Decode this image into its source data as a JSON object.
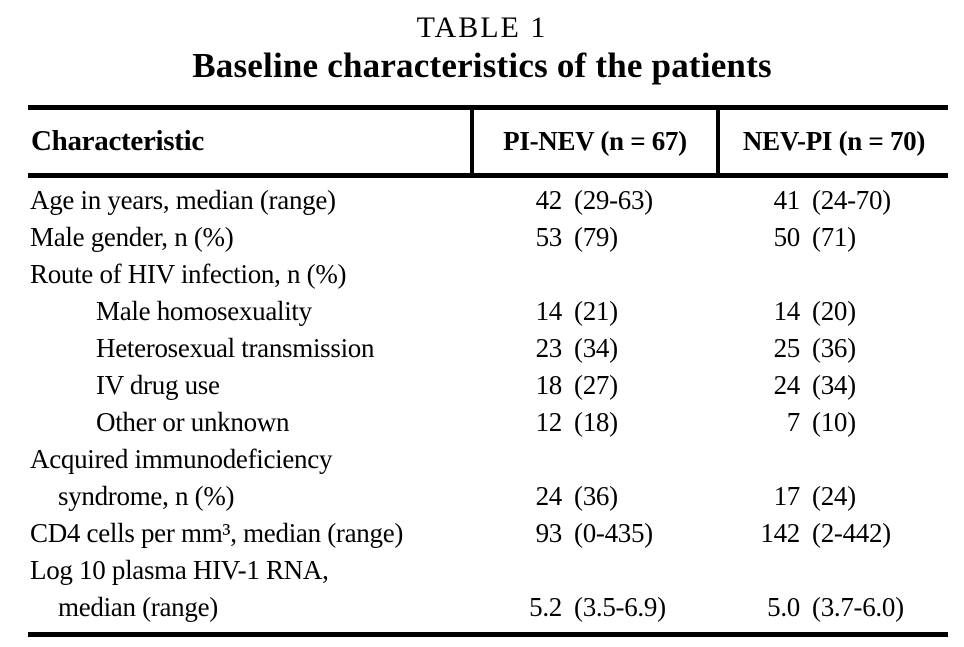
{
  "page": {
    "background": "#ffffff",
    "text_color": "#000000",
    "rule_color": "#000000"
  },
  "table": {
    "title": "TABLE 1",
    "subtitle": "Baseline characteristics of the patients",
    "columns": [
      "Characteristic",
      "PI-NEV (n = 67)",
      "NEV-PI (n = 70)"
    ],
    "rows": [
      {
        "label": "Age in years, median (range)",
        "indent": 0,
        "pi_nev": {
          "num": "42",
          "range": "(29-63)"
        },
        "nev_pi": {
          "num": "41",
          "range": "(24-70)"
        }
      },
      {
        "label": "Male gender, n (%)",
        "indent": 0,
        "pi_nev": {
          "num": "53",
          "range": "(79)"
        },
        "nev_pi": {
          "num": "50",
          "range": "(71)"
        }
      },
      {
        "label": "Route of HIV infection, n (%)",
        "indent": 0,
        "pi_nev": null,
        "nev_pi": null
      },
      {
        "label": "Male homosexuality",
        "indent": 2,
        "pi_nev": {
          "num": "14",
          "range": "(21)"
        },
        "nev_pi": {
          "num": "14",
          "range": "(20)"
        }
      },
      {
        "label": "Heterosexual transmission",
        "indent": 2,
        "pi_nev": {
          "num": "23",
          "range": "(34)"
        },
        "nev_pi": {
          "num": "25",
          "range": "(36)"
        }
      },
      {
        "label": "IV drug use",
        "indent": 2,
        "pi_nev": {
          "num": "18",
          "range": "(27)"
        },
        "nev_pi": {
          "num": "24",
          "range": "(34)"
        }
      },
      {
        "label": "Other or unknown",
        "indent": 2,
        "pi_nev": {
          "num": "12",
          "range": "(18)"
        },
        "nev_pi": {
          "num": "7",
          "range": "(10)"
        }
      },
      {
        "label": "Acquired immunodeficiency",
        "indent": 0,
        "pi_nev": null,
        "nev_pi": null
      },
      {
        "label": "syndrome, n (%)",
        "indent": 1,
        "pi_nev": {
          "num": "24",
          "range": "(36)"
        },
        "nev_pi": {
          "num": "17",
          "range": "(24)"
        }
      },
      {
        "label": "CD4 cells per mm³, median (range)",
        "indent": 0,
        "pi_nev": {
          "num": "93",
          "range": "(0-435)"
        },
        "nev_pi": {
          "num": "142",
          "range": "(2-442)"
        }
      },
      {
        "label": "Log 10 plasma HIV-1 RNA,",
        "indent": 0,
        "pi_nev": null,
        "nev_pi": null
      },
      {
        "label": "median (range)",
        "indent": 1,
        "pi_nev": {
          "num": "5.2",
          "range": "(3.5-6.9)"
        },
        "nev_pi": {
          "num": "5.0",
          "range": "(3.7-6.0)"
        }
      }
    ]
  }
}
